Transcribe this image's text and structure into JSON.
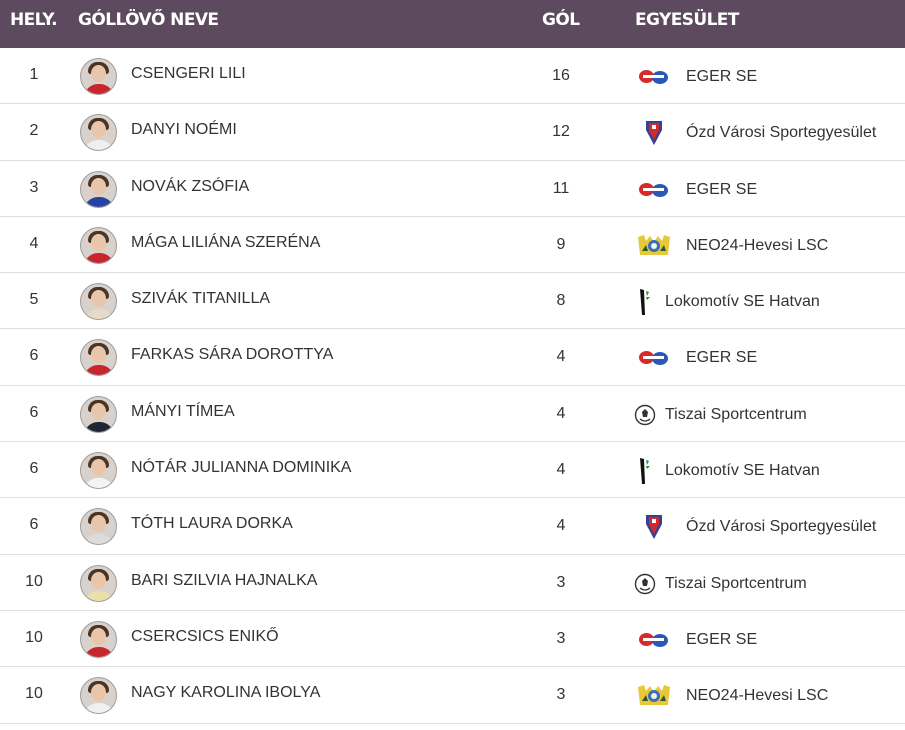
{
  "header": {
    "rank": "HELY.",
    "name": "GÓLLÖVŐ NEVE",
    "goals": "GÓL",
    "club": "EGYESÜLET"
  },
  "colors": {
    "header_bg": "#5e4a5e",
    "header_text": "#ffffff",
    "row_divider": "#dedede"
  },
  "rows": [
    {
      "rank": "1",
      "name": "CSENGERI LILI",
      "goals": "16",
      "club": "EGER SE",
      "logo": "eger-se-logo",
      "shirt": "#c8262c"
    },
    {
      "rank": "2",
      "name": "DANYI NOÉMI",
      "goals": "12",
      "club": "Ózd Városi Sportegyesület",
      "logo": "ozd-shield-logo",
      "shirt": "#f1eeee"
    },
    {
      "rank": "3",
      "name": "NOVÁK ZSÓFIA",
      "goals": "11",
      "club": "EGER SE",
      "logo": "eger-se-logo",
      "shirt": "#2743a1"
    },
    {
      "rank": "4",
      "name": "MÁGA LILIÁNA SZERÉNA",
      "goals": "9",
      "club": "NEO24-Hevesi LSC",
      "logo": "hevesi-lsc-logo",
      "shirt": "#c8262c"
    },
    {
      "rank": "5",
      "name": "SZIVÁK TITANILLA",
      "goals": "8",
      "club": "Lokomotív SE Hatvan",
      "logo": "lokomotiv-hatvan-logo",
      "shirt": "#e8d9c8"
    },
    {
      "rank": "6",
      "name": "FARKAS SÁRA DOROTTYA",
      "goals": "4",
      "club": "EGER SE",
      "logo": "eger-se-logo",
      "shirt": "#c8262c"
    },
    {
      "rank": "6",
      "name": "MÁNYI TÍMEA",
      "goals": "4",
      "club": "Tiszai Sportcentrum",
      "logo": "tiszai-ball-logo",
      "shirt": "#1e2733"
    },
    {
      "rank": "6",
      "name": "NÓTÁR JULIANNA DOMINIKA",
      "goals": "4",
      "club": "Lokomotív SE Hatvan",
      "logo": "lokomotiv-hatvan-logo",
      "shirt": "#f4f4f4"
    },
    {
      "rank": "6",
      "name": "TÓTH LAURA DORKA",
      "goals": "4",
      "club": "Ózd Városi Sportegyesület",
      "logo": "ozd-shield-logo",
      "shirt": "#dcdcdc"
    },
    {
      "rank": "10",
      "name": "BARI SZILVIA HAJNALKA",
      "goals": "3",
      "club": "Tiszai Sportcentrum",
      "logo": "tiszai-ball-logo",
      "shirt": "#e9dfa8"
    },
    {
      "rank": "10",
      "name": "CSERCSICS ENIKŐ",
      "goals": "3",
      "club": "EGER SE",
      "logo": "eger-se-logo",
      "shirt": "#c8262c"
    },
    {
      "rank": "10",
      "name": "NAGY KAROLINA IBOLYA",
      "goals": "3",
      "club": "NEO24-Hevesi LSC",
      "logo": "hevesi-lsc-logo",
      "shirt": "#f0f0f0"
    }
  ]
}
